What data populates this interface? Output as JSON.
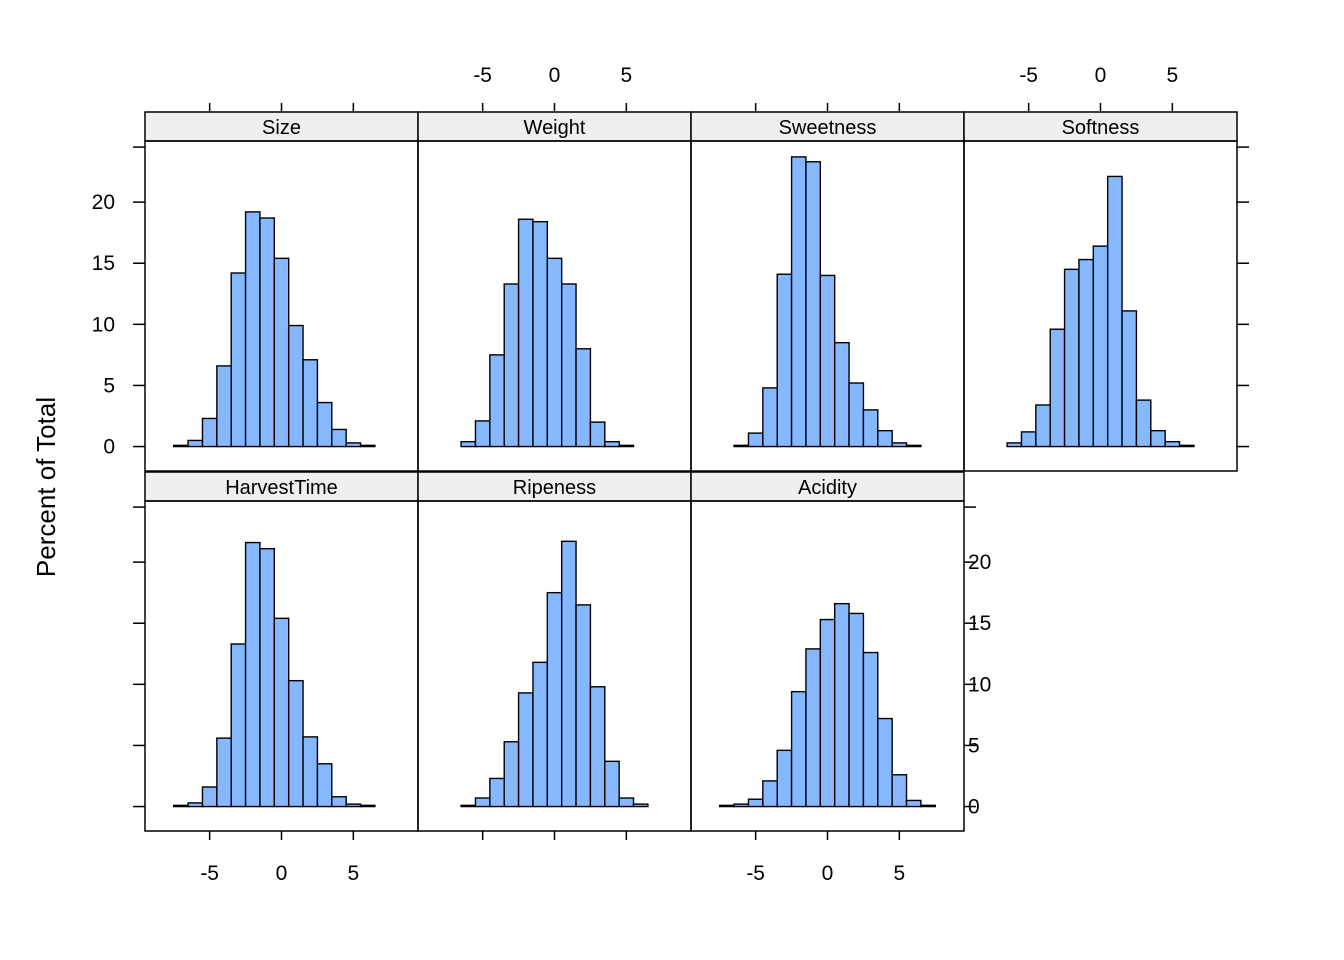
{
  "chart_data": {
    "type": "bar",
    "subtype": "histogram-trellis",
    "ylabel": "Percent of Total",
    "xlim": [
      -9.5,
      9.5
    ],
    "ylim": [
      -2,
      25
    ],
    "xticks": [
      -5,
      0,
      5
    ],
    "xtick_labels": [
      "-5",
      "0",
      "5"
    ],
    "yticks": [
      0,
      5,
      10,
      15,
      20
    ],
    "ytick_labels": [
      "0",
      "5",
      "10",
      "15",
      "20"
    ],
    "bin_edges": [
      -8.5,
      -7.5,
      -6.5,
      -5.5,
      -4.5,
      -3.5,
      -2.5,
      -1.5,
      -0.5,
      0.5,
      1.5,
      2.5,
      3.5,
      4.5,
      5.5,
      6.5,
      7.5,
      8.5
    ],
    "bar_color": "#85b8ff",
    "strip_color": "#efefef",
    "panels": [
      {
        "name": "Size",
        "values": [
          0,
          0.1,
          0.5,
          2.3,
          6.6,
          14.2,
          19.2,
          18.7,
          15.4,
          9.9,
          7.1,
          3.6,
          1.4,
          0.3,
          0.1,
          0,
          0
        ]
      },
      {
        "name": "Weight",
        "values": [
          0,
          0,
          0.4,
          2.1,
          7.5,
          13.3,
          18.6,
          18.4,
          15.4,
          13.3,
          8.0,
          2.0,
          0.4,
          0.1,
          0,
          0,
          0
        ]
      },
      {
        "name": "Sweetness",
        "values": [
          0,
          0,
          0.1,
          1.1,
          4.8,
          14.1,
          23.7,
          23.3,
          14.0,
          8.5,
          5.2,
          3.0,
          1.3,
          0.3,
          0.1,
          0,
          0
        ]
      },
      {
        "name": "Softness",
        "values": [
          0,
          0,
          0.3,
          1.2,
          3.4,
          9.6,
          14.5,
          15.3,
          16.4,
          22.1,
          11.1,
          3.8,
          1.3,
          0.4,
          0.1,
          0,
          0
        ]
      },
      {
        "name": "HarvestTime",
        "values": [
          0,
          0.1,
          0.3,
          1.6,
          5.6,
          13.3,
          21.6,
          21.1,
          15.4,
          10.3,
          5.7,
          3.5,
          0.8,
          0.2,
          0.1,
          0,
          0
        ]
      },
      {
        "name": "Ripeness",
        "values": [
          0,
          0,
          0.1,
          0.7,
          2.3,
          5.3,
          9.3,
          11.8,
          17.5,
          21.7,
          16.5,
          9.8,
          3.7,
          0.7,
          0.2,
          0,
          0
        ]
      },
      {
        "name": "Acidity",
        "values": [
          0,
          0.1,
          0.2,
          0.6,
          2.1,
          4.6,
          9.4,
          12.9,
          15.3,
          16.6,
          15.8,
          12.6,
          7.2,
          2.6,
          0.5,
          0.1,
          0
        ]
      }
    ]
  }
}
